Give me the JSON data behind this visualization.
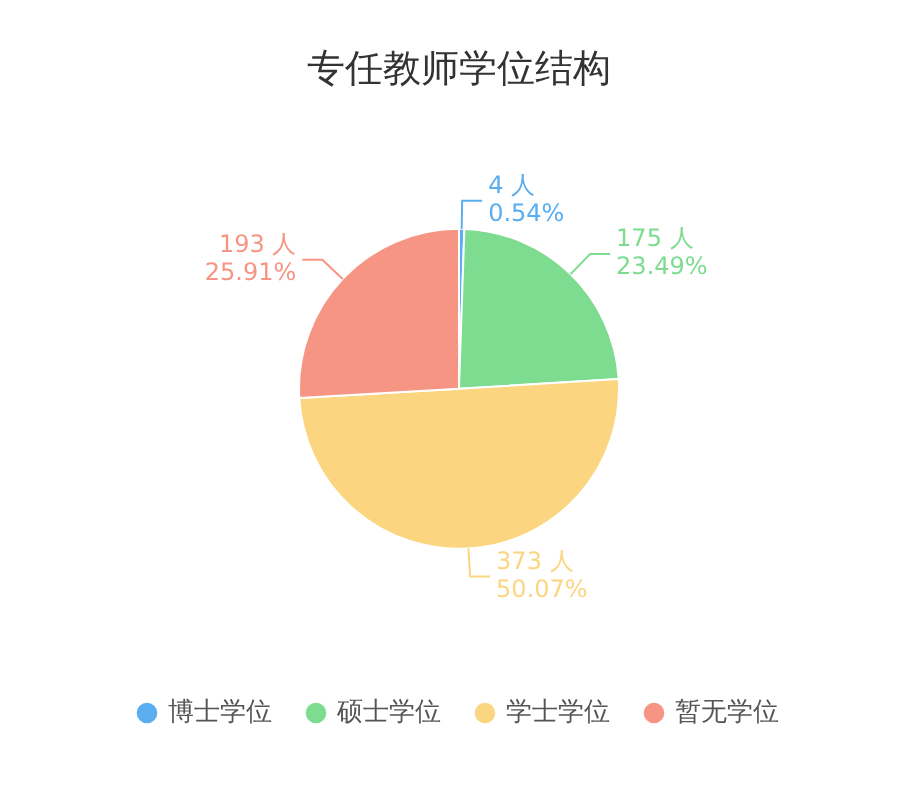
{
  "chart_data": {
    "type": "pie",
    "title": "专任教师学位结构",
    "categories": [
      "博士学位",
      "硕士学位",
      "学士学位",
      "暂无学位"
    ],
    "values": [
      4,
      175,
      373,
      193
    ],
    "colors": [
      "#5aaef0",
      "#7ddc8f",
      "#fbd580",
      "#f79585"
    ],
    "value_labels": [
      "4 人\n0.54%",
      "175 人\n23.49%",
      "373 人\n50.07%",
      "193 人\n25.91%"
    ],
    "legend": "bottom"
  }
}
